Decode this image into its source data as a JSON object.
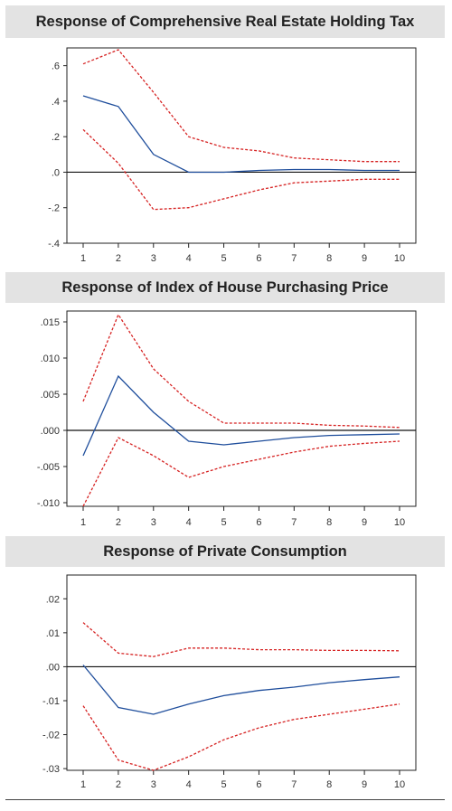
{
  "chart_data": [
    {
      "type": "line",
      "title": "Response of Comprehensive Real Estate Holding Tax",
      "x": [
        1,
        2,
        3,
        4,
        5,
        6,
        7,
        8,
        9,
        10
      ],
      "ylim": [
        -0.4,
        0.7
      ],
      "yticks": [
        -0.4,
        -0.2,
        0.0,
        0.2,
        0.4,
        0.6
      ],
      "ytick_labels": [
        "-.4",
        "-.2",
        ".0",
        ".2",
        ".4",
        ".6"
      ],
      "series": [
        {
          "role": "response",
          "color": "#1f4e9c",
          "style": "solid",
          "values": [
            0.43,
            0.37,
            0.1,
            0.0,
            0.0,
            0.01,
            0.015,
            0.015,
            0.01,
            0.01
          ]
        },
        {
          "role": "upper",
          "color": "#d62222",
          "style": "dashed",
          "values": [
            0.61,
            0.69,
            0.45,
            0.2,
            0.14,
            0.12,
            0.08,
            0.07,
            0.06,
            0.06
          ]
        },
        {
          "role": "lower",
          "color": "#d62222",
          "style": "dashed",
          "values": [
            0.24,
            0.05,
            -0.21,
            -0.2,
            -0.15,
            -0.1,
            -0.06,
            -0.05,
            -0.04,
            -0.04
          ]
        }
      ]
    },
    {
      "type": "line",
      "title": "Response of Index of House Purchasing Price",
      "x": [
        1,
        2,
        3,
        4,
        5,
        6,
        7,
        8,
        9,
        10
      ],
      "ylim": [
        -0.0105,
        0.0165
      ],
      "yticks": [
        -0.01,
        -0.005,
        0.0,
        0.005,
        0.01,
        0.015
      ],
      "ytick_labels": [
        "-.010",
        "-.005",
        ".000",
        ".005",
        ".010",
        ".015"
      ],
      "series": [
        {
          "role": "response",
          "color": "#1f4e9c",
          "style": "solid",
          "values": [
            -0.0035,
            0.0075,
            0.0025,
            -0.0015,
            -0.002,
            -0.0015,
            -0.001,
            -0.0007,
            -0.0006,
            -0.0005
          ]
        },
        {
          "role": "upper",
          "color": "#d62222",
          "style": "dashed",
          "values": [
            0.004,
            0.016,
            0.0085,
            0.004,
            0.001,
            0.001,
            0.001,
            0.0007,
            0.0006,
            0.0004
          ]
        },
        {
          "role": "lower",
          "color": "#d62222",
          "style": "dashed",
          "values": [
            -0.0105,
            -0.001,
            -0.0035,
            -0.0065,
            -0.005,
            -0.004,
            -0.003,
            -0.0022,
            -0.0018,
            -0.0015
          ]
        }
      ]
    },
    {
      "type": "line",
      "title": "Response of Private Consumption",
      "x": [
        1,
        2,
        3,
        4,
        5,
        6,
        7,
        8,
        9,
        10
      ],
      "ylim": [
        -0.0305,
        0.027
      ],
      "yticks": [
        -0.03,
        -0.02,
        -0.01,
        0.0,
        0.01,
        0.02
      ],
      "ytick_labels": [
        "-.03",
        "-.02",
        "-.01",
        ".00",
        ".01",
        ".02"
      ],
      "series": [
        {
          "role": "response",
          "color": "#1f4e9c",
          "style": "solid",
          "values": [
            0.0005,
            -0.012,
            -0.014,
            -0.011,
            -0.0085,
            -0.007,
            -0.006,
            -0.0047,
            -0.0038,
            -0.003
          ]
        },
        {
          "role": "upper",
          "color": "#d62222",
          "style": "dashed",
          "values": [
            0.013,
            0.004,
            0.003,
            0.0055,
            0.0055,
            0.005,
            0.005,
            0.0048,
            0.0048,
            0.0047
          ]
        },
        {
          "role": "lower",
          "color": "#d62222",
          "style": "dashed",
          "values": [
            -0.0115,
            -0.0275,
            -0.0305,
            -0.0265,
            -0.0215,
            -0.018,
            -0.0155,
            -0.014,
            -0.0125,
            -0.011
          ]
        }
      ]
    }
  ]
}
